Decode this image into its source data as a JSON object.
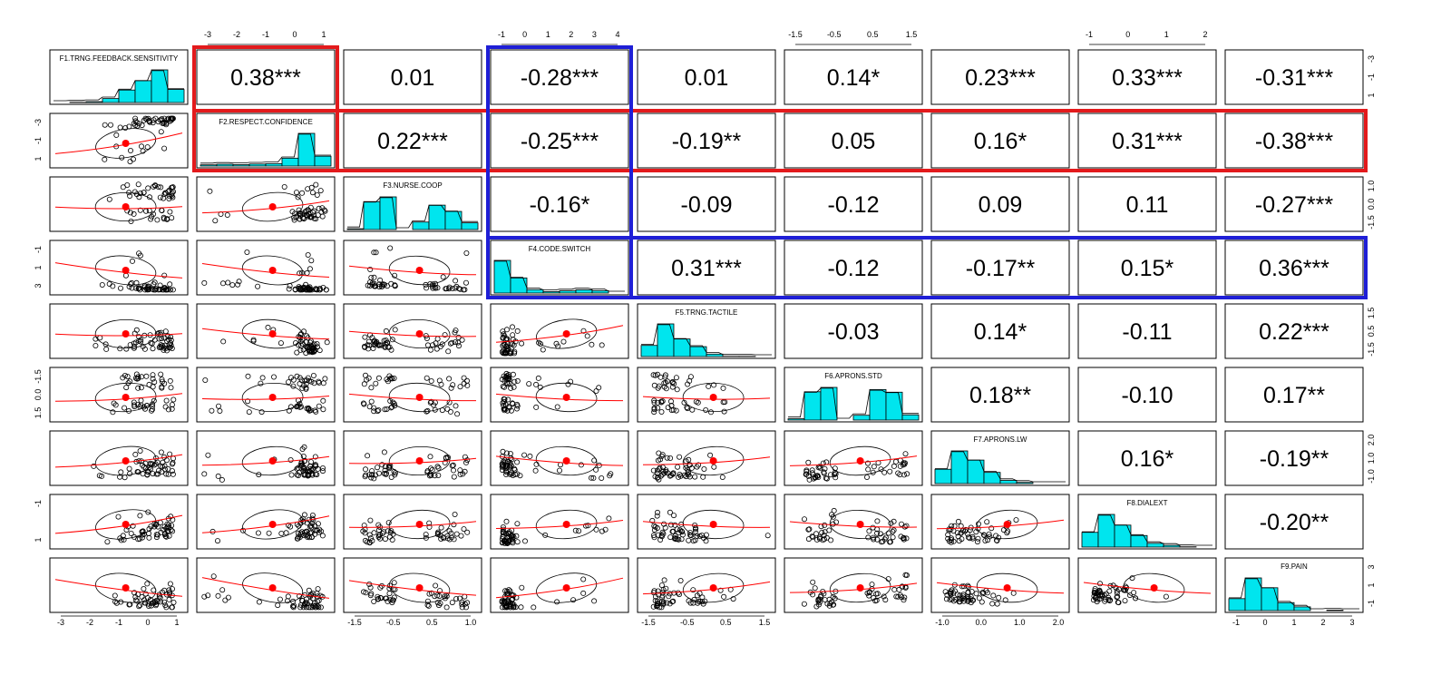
{
  "chart_data": {
    "type": "scatter-matrix",
    "variables": [
      "F1.TRNG.FEEDBACK.SENSITIVITY",
      "F2.RESPECT.CONFIDENCE",
      "F3.NURSE.COOP",
      "F4.CODE.SWITCH",
      "F5.TRNG.TACTILE",
      "F6.APRONS.STD",
      "F7.APRONS.LW",
      "F8.DIALEXT",
      "F9.PAIN"
    ],
    "ranges": [
      [
        -3.3,
        1.7
      ],
      [
        -3.4,
        1.4
      ],
      [
        -1.7,
        1.2
      ],
      [
        -1.4,
        4.9
      ],
      [
        -1.7,
        2.0
      ],
      [
        -1.7,
        1.7
      ],
      [
        -1.4,
        2.3
      ],
      [
        -2.1,
        2.5
      ],
      [
        -1.5,
        3.5
      ]
    ],
    "ticks": [
      [
        "-3",
        "-2",
        "-1",
        "0",
        "1"
      ],
      [
        "-3",
        "-2",
        "-1",
        "0",
        "1"
      ],
      [
        "-1.5",
        "-0.5",
        "0.5",
        "1.0"
      ],
      [
        "-1",
        "0",
        "1",
        "2",
        "3",
        "4"
      ],
      [
        "-1.5",
        "-0.5",
        "0.5",
        "1.5"
      ],
      [
        "-1.5",
        "-0.5",
        "0.5",
        "1.5"
      ],
      [
        "-1.0",
        "0.0",
        "1.0",
        "2.0"
      ],
      [
        "-1",
        "0",
        "1",
        "2"
      ],
      [
        "-1",
        "0",
        "1",
        "2",
        "3"
      ]
    ],
    "side_ticks": [
      [
        "1",
        "-1",
        "-3"
      ],
      [
        "1",
        "-1",
        "-3"
      ],
      [
        "-1.5",
        "0.0",
        "1.0"
      ],
      [
        "3",
        "1",
        "-1"
      ],
      [
        "-1.5",
        "0.5",
        "1.5"
      ],
      [
        "1.5",
        "0.0",
        "-1.5"
      ],
      [
        "-1.0",
        "1.0",
        "2.0"
      ],
      [
        "1",
        "-1"
      ],
      [
        "-1",
        "1",
        "3"
      ]
    ],
    "correlations": [
      [
        "0.38***",
        "0.01",
        "-0.28***",
        "0.01",
        "0.14*",
        "0.23***",
        "0.33***",
        "-0.31***"
      ],
      [
        "0.22***",
        "-0.25***",
        "-0.19**",
        "0.05",
        "0.16*",
        "0.31***",
        "-0.38***"
      ],
      [
        "-0.16*",
        "-0.09",
        "-0.12",
        "0.09",
        "0.11",
        "-0.27***"
      ],
      [
        "0.31***",
        "-0.12",
        "-0.17**",
        "0.15*",
        "0.36***"
      ],
      [
        "-0.03",
        "0.14*",
        "-0.11",
        "0.22***"
      ],
      [
        "0.18**",
        "-0.10",
        "0.17**"
      ],
      [
        "0.16*",
        "-0.19**"
      ],
      [
        "-0.20**"
      ]
    ],
    "correlation_values": [
      [
        0.38,
        0.01,
        -0.28,
        0.01,
        0.14,
        0.23,
        0.33,
        -0.31
      ],
      [
        0.22,
        -0.25,
        -0.19,
        0.05,
        0.16,
        0.31,
        -0.38
      ],
      [
        -0.16,
        -0.09,
        -0.12,
        0.09,
        0.11,
        -0.27
      ],
      [
        0.31,
        -0.12,
        -0.17,
        0.15,
        0.36
      ],
      [
        -0.03,
        0.14,
        -0.11,
        0.22
      ],
      [
        0.18,
        -0.1,
        0.17
      ],
      [
        0.16,
        -0.19
      ],
      [
        -0.2
      ]
    ],
    "distribution": [
      "skew-left",
      "skew-left-strong",
      "bimodal",
      "skew-right-strong",
      "skew-right",
      "bimodal",
      "skew-right",
      "skew-right",
      "skew-right"
    ],
    "highlights": [
      {
        "color": "#e31a1c",
        "variable": "F2.RESPECT.CONFIDENCE",
        "line": "row + column"
      },
      {
        "color": "#1f1fd6",
        "variable": "F4.CODE.SWITCH",
        "line": "row + column"
      }
    ],
    "colors": {
      "histogram": "#00e5ee",
      "points": "#000000",
      "smoother": "#ff0000",
      "ellipse": "#000000",
      "center": "#ff0000"
    }
  }
}
